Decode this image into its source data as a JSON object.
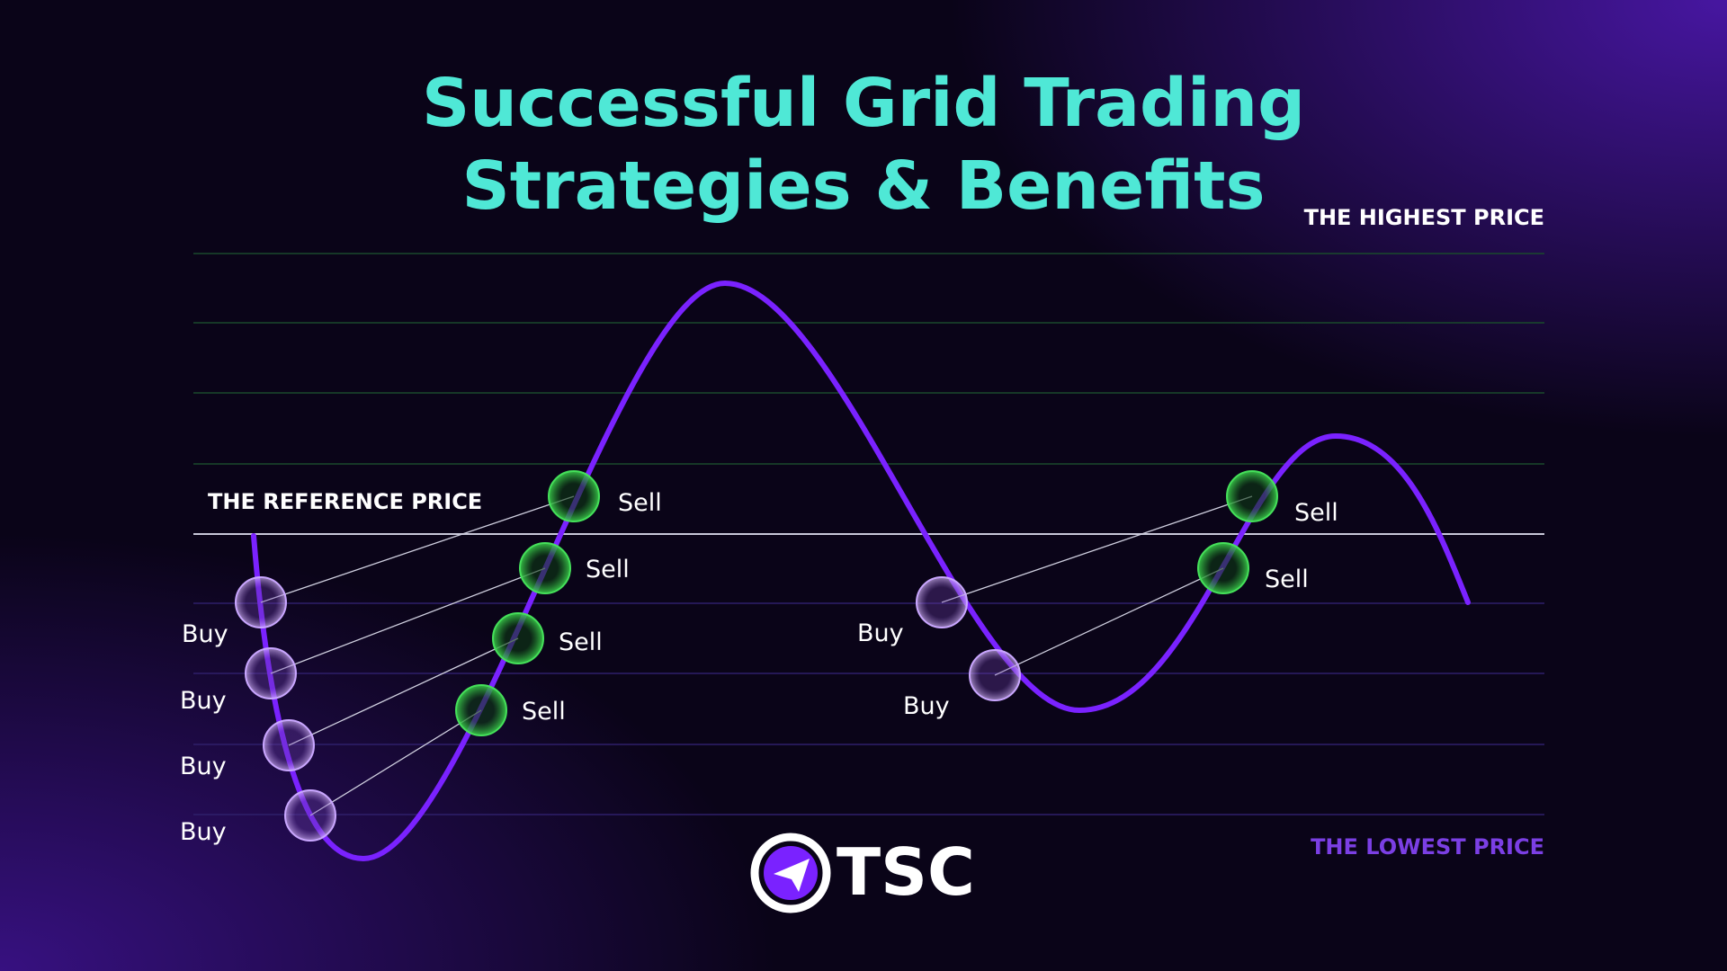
{
  "header": {
    "title": [
      "Successful Grid Trading",
      "Strategies & Benefits"
    ]
  },
  "levels": {
    "highest": "THE HIGHEST PRICE",
    "reference": "THE REFERENCE PRICE",
    "lowest": "THE LOWEST PRICE"
  },
  "buy_labels": [
    "Buy",
    "Buy",
    "Buy",
    "Buy",
    "Buy",
    "Buy"
  ],
  "sell_labels": [
    "Sell",
    "Sell",
    "Sell",
    "Sell",
    "Sell",
    "Sell"
  ],
  "logo": {
    "text": "TSC"
  }
}
